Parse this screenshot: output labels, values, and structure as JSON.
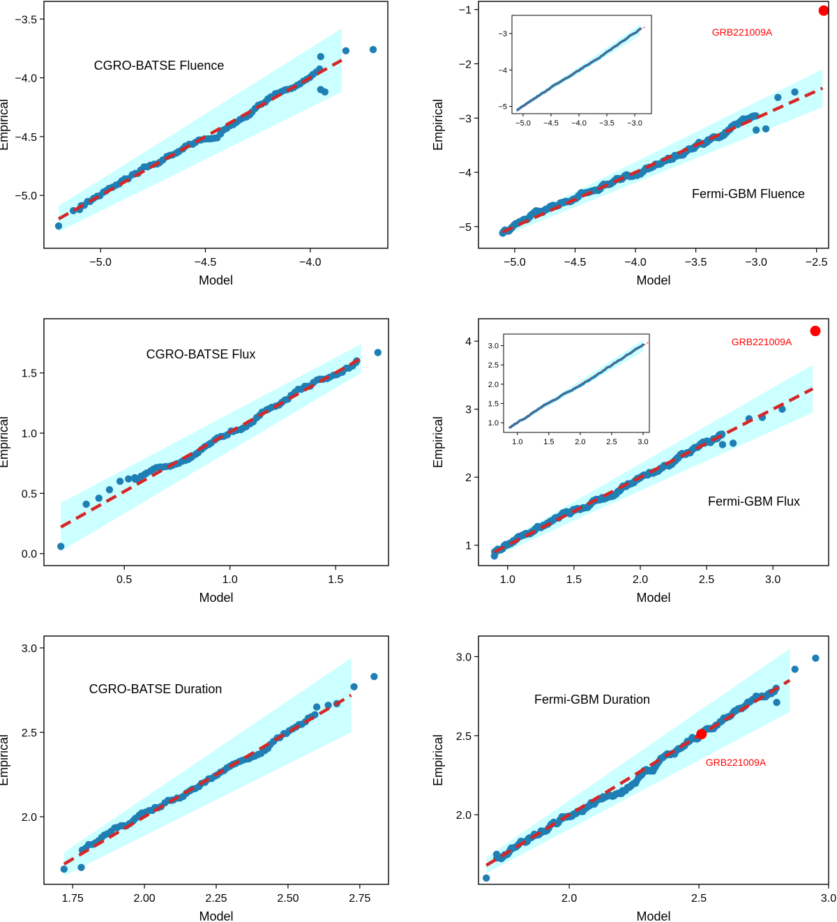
{
  "colors": {
    "points": "#1f7fb4",
    "fit_line": "#d62728",
    "band": "#ccffff",
    "highlight": "#ff0000",
    "frame": "#000000"
  },
  "chart_data": [
    {
      "type": "scatter",
      "title": "CGRO-BATSE Fluence",
      "xlabel": "Model",
      "ylabel": "Empirical",
      "xlim": [
        -5.27,
        -3.63
      ],
      "ylim": [
        -5.45,
        -3.35
      ],
      "xticks": [
        -5.0,
        -4.5,
        -4.0
      ],
      "xtick_labels": [
        "−5.0",
        "−4.5",
        "−4.0"
      ],
      "yticks": [
        -5.0,
        -4.5,
        -4.0,
        -3.5
      ],
      "ytick_labels": [
        "−5.0",
        "−4.5",
        "−4.0",
        "−3.5"
      ],
      "n_points": 100,
      "range": [
        -5.2,
        -3.7
      ],
      "fit": [
        -5.2,
        -5.2,
        -3.85,
        -3.85
      ],
      "band_half_width": [
        0.11,
        0.27
      ],
      "lo_tail": [
        [
          -5.2,
          -5.26
        ],
        [
          -5.13,
          -5.13
        ],
        [
          -5.1,
          -5.12
        ]
      ],
      "hi_tail": [
        [
          -3.95,
          -4.1
        ],
        [
          -3.93,
          -4.12
        ],
        [
          -3.95,
          -3.82
        ],
        [
          -3.83,
          -3.77
        ],
        [
          -3.7,
          -3.76
        ]
      ]
    },
    {
      "type": "scatter",
      "title": "Fermi-GBM Fluence",
      "xlabel": "Model",
      "ylabel": "Empirical",
      "xlim": [
        -5.3,
        -2.4
      ],
      "ylim": [
        -5.4,
        -0.85
      ],
      "xticks": [
        -5.0,
        -4.5,
        -4.0,
        -3.5,
        -3.0,
        -2.5
      ],
      "xtick_labels": [
        "−5.0",
        "−4.5",
        "−4.0",
        "−3.5",
        "−3.0",
        "−2.5"
      ],
      "yticks": [
        -5,
        -4,
        -3,
        -2,
        -1
      ],
      "ytick_labels": [
        "−5",
        "−4",
        "−3",
        "−2",
        "−1"
      ],
      "n_points": 240,
      "range": [
        -5.1,
        -2.7
      ],
      "fit": [
        -5.1,
        -5.1,
        -2.45,
        -2.45
      ],
      "band_half_width": [
        0.08,
        0.35
      ],
      "lo_tail": [
        [
          -5.1,
          -5.12
        ]
      ],
      "hi_tail": [
        [
          -3.0,
          -3.22
        ],
        [
          -2.92,
          -3.2
        ],
        [
          -2.82,
          -2.62
        ],
        [
          -2.68,
          -2.52
        ]
      ],
      "highlight": {
        "label": "GRB221009A",
        "x": -2.44,
        "y": -1.02
      },
      "inset": {
        "n_points": 160,
        "range": [
          -5.1,
          -2.9
        ],
        "xlim": [
          -5.2,
          -2.7
        ],
        "ylim": [
          -5.2,
          -2.5
        ],
        "xticks": [
          -5.0,
          -4.5,
          -4.0,
          -3.5,
          -3.0
        ],
        "xtick_labels": [
          "−5.0",
          "−4.5",
          "−4.0",
          "−3.5",
          "−3.0"
        ],
        "yticks": [
          -5,
          -4,
          -3
        ],
        "ytick_labels": [
          "−5",
          "−4",
          "−3"
        ]
      }
    },
    {
      "type": "scatter",
      "title": "CGRO-BATSE Flux",
      "xlabel": "Model",
      "ylabel": "Empirical",
      "xlim": [
        0.12,
        1.75
      ],
      "ylim": [
        -0.1,
        1.95
      ],
      "xticks": [
        0.5,
        1.0,
        1.5
      ],
      "xtick_labels": [
        "0.5",
        "1.0",
        "1.5"
      ],
      "yticks": [
        0.0,
        0.5,
        1.0,
        1.5
      ],
      "ytick_labels": [
        "0.0",
        "0.5",
        "1.0",
        "1.5"
      ],
      "n_points": 100,
      "range": [
        0.2,
        1.7
      ],
      "fit": [
        0.2,
        0.22,
        1.62,
        1.62
      ],
      "band_half_width": [
        0.2,
        0.12
      ],
      "lo_tail": [
        [
          0.2,
          0.06
        ],
        [
          0.32,
          0.41
        ],
        [
          0.38,
          0.46
        ],
        [
          0.43,
          0.53
        ],
        [
          0.48,
          0.6
        ],
        [
          0.52,
          0.62
        ],
        [
          0.55,
          0.63
        ]
      ],
      "hi_tail": [
        [
          1.6,
          1.6
        ],
        [
          1.7,
          1.67
        ]
      ]
    },
    {
      "type": "scatter",
      "title": "Fermi-GBM Flux",
      "xlabel": "Model",
      "ylabel": "Empirical",
      "xlim": [
        0.78,
        3.42
      ],
      "ylim": [
        0.7,
        4.33
      ],
      "xticks": [
        1.0,
        1.5,
        2.0,
        2.5,
        3.0
      ],
      "xtick_labels": [
        "1.0",
        "1.5",
        "2.0",
        "2.5",
        "3.0"
      ],
      "yticks": [
        1,
        2,
        3,
        4
      ],
      "ytick_labels": [
        "1",
        "2",
        "3",
        "4"
      ],
      "n_points": 240,
      "range": [
        0.9,
        2.75
      ],
      "fit": [
        0.9,
        0.9,
        3.3,
        3.3
      ],
      "band_half_width": [
        0.07,
        0.35
      ],
      "lo_tail": [
        [
          0.9,
          0.84
        ]
      ],
      "hi_tail": [
        [
          2.62,
          2.48
        ],
        [
          2.7,
          2.5
        ],
        [
          2.82,
          2.86
        ],
        [
          2.92,
          2.88
        ],
        [
          3.07,
          3.0
        ]
      ],
      "highlight": {
        "label": "GRB221009A",
        "x": 3.32,
        "y": 4.15
      },
      "inset": {
        "n_points": 160,
        "range": [
          0.88,
          3.0
        ],
        "xlim": [
          0.78,
          3.1
        ],
        "ylim": [
          0.75,
          3.3
        ],
        "xticks": [
          1.0,
          1.5,
          2.0,
          2.5,
          3.0
        ],
        "xtick_labels": [
          "1.0",
          "1.5",
          "2.0",
          "2.5",
          "3.0"
        ],
        "yticks": [
          1.0,
          1.5,
          2.0,
          2.5,
          3.0
        ],
        "ytick_labels": [
          "1.0",
          "1.5",
          "2.0",
          "2.5",
          "3.0"
        ]
      }
    },
    {
      "type": "scatter",
      "title": "CGRO-BATSE Duration",
      "xlabel": "Model",
      "ylabel": "Empirical",
      "xlim": [
        1.65,
        2.85
      ],
      "ylim": [
        1.6,
        3.07
      ],
      "xticks": [
        1.75,
        2.0,
        2.25,
        2.5,
        2.75
      ],
      "xtick_labels": [
        "1.75",
        "2.00",
        "2.25",
        "2.50",
        "2.75"
      ],
      "yticks": [
        2.0,
        2.5,
        3.0
      ],
      "ytick_labels": [
        "2.0",
        "2.5",
        "3.0"
      ],
      "n_points": 100,
      "range": [
        1.72,
        2.8
      ],
      "fit": [
        1.72,
        1.72,
        2.72,
        2.72
      ],
      "band_half_width": [
        0.07,
        0.22
      ],
      "lo_tail": [
        [
          1.72,
          1.69
        ],
        [
          1.78,
          1.7
        ]
      ],
      "hi_tail": [
        [
          2.6,
          2.65
        ],
        [
          2.64,
          2.66
        ],
        [
          2.67,
          2.67
        ],
        [
          2.73,
          2.77
        ],
        [
          2.8,
          2.83
        ]
      ]
    },
    {
      "type": "scatter",
      "title": "Fermi-GBM Duration",
      "xlabel": "Model",
      "ylabel": "Empirical",
      "xlim": [
        1.65,
        3.0
      ],
      "ylim": [
        1.56,
        3.13
      ],
      "xticks": [
        2.0,
        2.5,
        3.0
      ],
      "xtick_labels": [
        "2.0",
        "2.5",
        "3.0"
      ],
      "yticks": [
        2.0,
        2.5,
        3.0
      ],
      "ytick_labels": [
        "2.0",
        "2.5",
        "3.0"
      ],
      "n_points": 220,
      "range": [
        1.68,
        2.95
      ],
      "fit": [
        1.68,
        1.68,
        2.85,
        2.85
      ],
      "band_half_width": [
        0.05,
        0.2
      ],
      "lo_tail": [
        [
          1.68,
          1.6
        ],
        [
          1.72,
          1.75
        ]
      ],
      "hi_tail": [
        [
          2.8,
          2.71
        ],
        [
          2.87,
          2.92
        ],
        [
          2.95,
          2.99
        ]
      ],
      "highlight": {
        "label": "GRB221009A",
        "x": 2.51,
        "y": 2.51
      }
    }
  ]
}
